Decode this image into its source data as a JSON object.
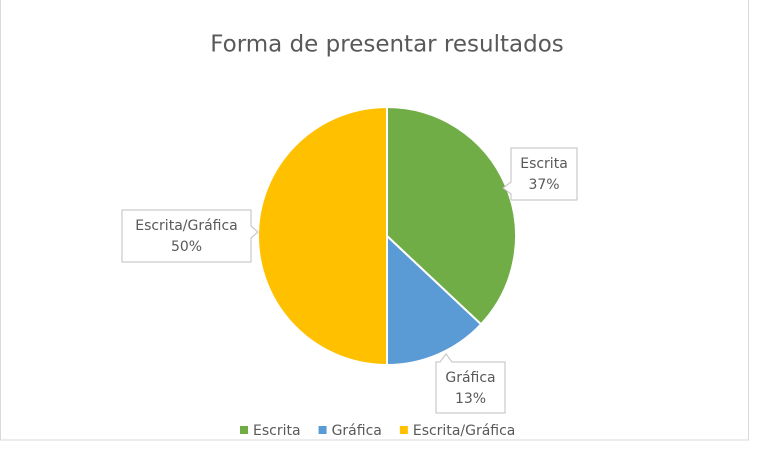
{
  "chart_data": {
    "type": "pie",
    "title": "Forma de presentar resultados",
    "categories": [
      "Escrita",
      "Gráfica",
      "Escrita/Gráfica"
    ],
    "values": [
      37,
      13,
      50
    ],
    "value_labels": [
      "37%",
      "13%",
      "50%"
    ],
    "colors": [
      "#70ad47",
      "#5b9bd5",
      "#ffc000"
    ],
    "legend": "bottom"
  }
}
